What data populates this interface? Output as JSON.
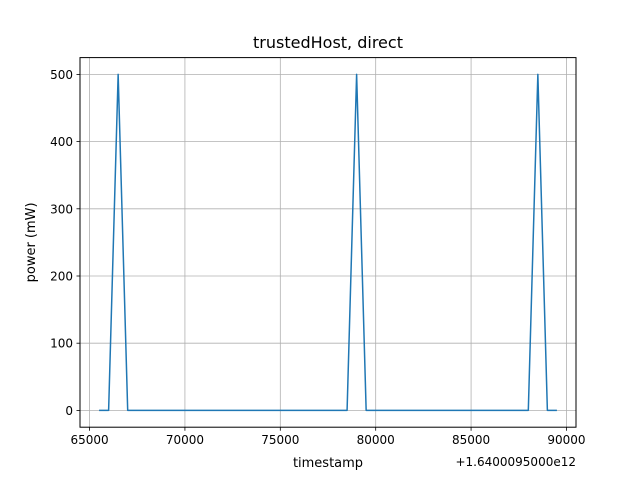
{
  "chart_data": {
    "type": "line",
    "title": "trustedHost, direct",
    "xlabel": "timestamp",
    "ylabel": "power (mW)",
    "x_offset_label": "+1.6400095000e12",
    "xlim": [
      64500,
      90500
    ],
    "ylim": [
      -25,
      525
    ],
    "x_ticks": [
      65000,
      70000,
      75000,
      80000,
      85000,
      90000
    ],
    "x_tick_labels": [
      "65000",
      "70000",
      "75000",
      "80000",
      "85000",
      "90000"
    ],
    "y_ticks": [
      0,
      100,
      200,
      300,
      400,
      500
    ],
    "y_tick_labels": [
      "0",
      "100",
      "200",
      "300",
      "400",
      "500"
    ],
    "grid": true,
    "series": [
      {
        "color": "#1f77b4",
        "points": [
          [
            65500,
            0
          ],
          [
            66000,
            0
          ],
          [
            66500,
            500
          ],
          [
            67000,
            0
          ],
          [
            78500,
            0
          ],
          [
            79000,
            500
          ],
          [
            79500,
            0
          ],
          [
            88000,
            0
          ],
          [
            88500,
            500
          ],
          [
            89000,
            0
          ],
          [
            89500,
            0
          ]
        ]
      }
    ]
  }
}
